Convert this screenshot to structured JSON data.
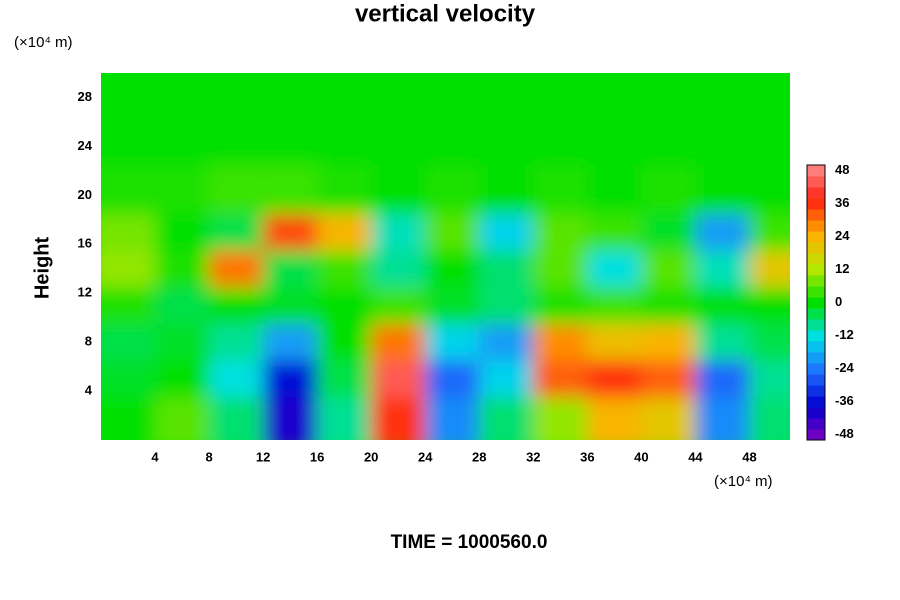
{
  "chart_data": {
    "type": "contour",
    "title": "vertical velocity",
    "y_label": "Height",
    "x_unit_label": "(×10⁴ m)",
    "y_unit_label": "(×10⁴ m)",
    "annotation": "TIME = 1000560.0",
    "xlim": [
      0,
      51
    ],
    "ylim": [
      0,
      30
    ],
    "xticks": [
      4,
      8,
      12,
      16,
      20,
      24,
      28,
      32,
      36,
      40,
      44,
      48
    ],
    "yticks": [
      4,
      8,
      12,
      16,
      20,
      24,
      28
    ],
    "zlim": [
      -50,
      50
    ],
    "zticks": [
      48,
      36,
      24,
      12,
      0,
      -12,
      -24,
      -36,
      -48
    ],
    "colorscale": [
      "#8000c0",
      "#0000d0",
      "#2070ff",
      "#00e0e8",
      "#00e000",
      "#b8e800",
      "#ffb000",
      "#ff2010",
      "#ff9090"
    ],
    "x": [
      2,
      6,
      10,
      14,
      18,
      22,
      26,
      30,
      34,
      38,
      42,
      46,
      50
    ],
    "y": [
      2,
      5,
      8,
      11,
      14,
      17,
      20,
      25
    ],
    "z": [
      [
        0,
        6,
        -6,
        -40,
        -8,
        36,
        -22,
        -6,
        10,
        24,
        20,
        -22,
        -6
      ],
      [
        -2,
        0,
        -12,
        -36,
        -4,
        44,
        -26,
        -14,
        32,
        36,
        32,
        -26,
        -8
      ],
      [
        -4,
        -2,
        -8,
        -20,
        0,
        30,
        -14,
        -20,
        28,
        22,
        24,
        -8,
        -4
      ],
      [
        2,
        -4,
        0,
        -2,
        0,
        4,
        -2,
        -6,
        2,
        4,
        2,
        0,
        0
      ],
      [
        10,
        2,
        30,
        -4,
        4,
        -8,
        0,
        -6,
        6,
        -12,
        6,
        -10,
        20
      ],
      [
        8,
        0,
        -4,
        34,
        24,
        -10,
        6,
        -14,
        6,
        4,
        -2,
        -20,
        4
      ],
      [
        2,
        2,
        4,
        4,
        2,
        0,
        2,
        0,
        2,
        0,
        2,
        0,
        0
      ],
      [
        0,
        0,
        0,
        0,
        0,
        0,
        0,
        0,
        0,
        0,
        0,
        0,
        0
      ]
    ]
  }
}
